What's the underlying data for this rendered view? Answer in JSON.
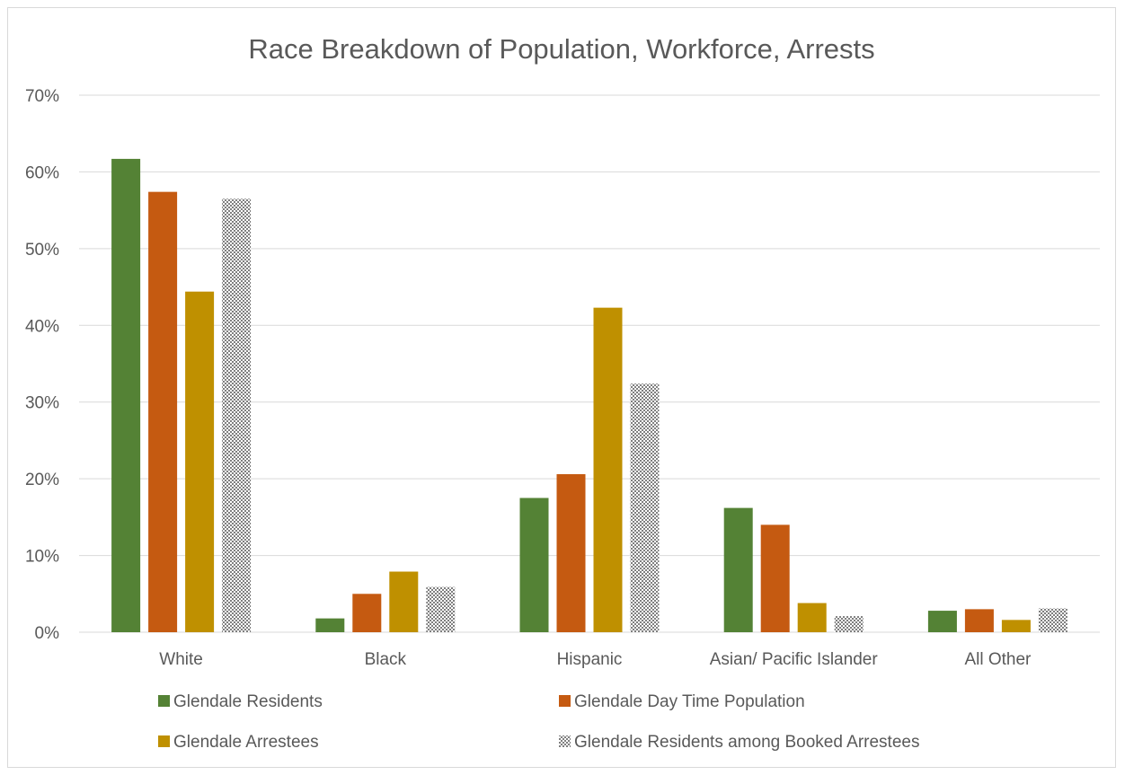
{
  "chart_data": {
    "type": "bar",
    "title": "Race Breakdown of Population, Workforce, Arrests",
    "xlabel": "",
    "ylabel": "",
    "ylim": [
      0,
      0.7
    ],
    "y_ticks": [
      0,
      0.1,
      0.2,
      0.3,
      0.4,
      0.5,
      0.6,
      0.7
    ],
    "y_tick_labels": [
      "0%",
      "10%",
      "20%",
      "30%",
      "40%",
      "50%",
      "60%",
      "70%"
    ],
    "grid": true,
    "legend_placement": "bottom",
    "categories": [
      "White",
      "Black",
      "Hispanic",
      "Asian/ Pacific Islander",
      "All Other"
    ],
    "series": [
      {
        "name": "Glendale Residents",
        "color": "#548235",
        "pattern": "solid",
        "values": [
          0.617,
          0.018,
          0.175,
          0.162,
          0.028
        ]
      },
      {
        "name": "Glendale Day Time Population",
        "color": "#c55a11",
        "pattern": "solid",
        "values": [
          0.574,
          0.05,
          0.206,
          0.14,
          0.03
        ]
      },
      {
        "name": "Glendale Arrestees",
        "color": "#bf9000",
        "pattern": "solid",
        "values": [
          0.444,
          0.079,
          0.423,
          0.038,
          0.016
        ]
      },
      {
        "name": "Glendale Residents among Booked Arrestees",
        "color": "#7f7f7f",
        "pattern": "checker",
        "values": [
          0.565,
          0.059,
          0.324,
          0.021,
          0.031
        ]
      }
    ]
  }
}
